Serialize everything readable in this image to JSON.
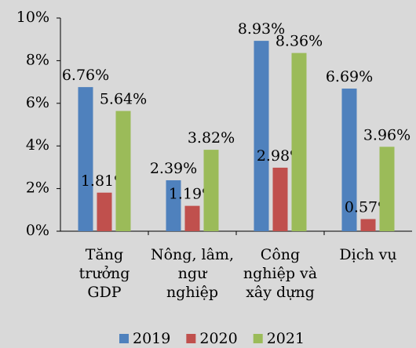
{
  "chart_data": {
    "type": "bar",
    "categories": [
      "Tăng\ntrưởng\nGDP",
      "Nông, lâm,\nngư\nnghiệp",
      "Công\nnghiệp và\nxây dựng",
      "Dịch vụ"
    ],
    "series": [
      {
        "name": "2019",
        "color": "#4f81bd",
        "values": [
          6.76,
          2.39,
          8.93,
          6.69
        ],
        "value_labels": [
          "6.76%",
          "2.39%",
          "8.93%",
          "6.69%"
        ]
      },
      {
        "name": "2020",
        "color": "#c0504d",
        "values": [
          1.81,
          1.19,
          2.98,
          0.57
        ],
        "value_labels": [
          "1.81%",
          "1.19%",
          "2.98%",
          "0.57%"
        ]
      },
      {
        "name": "2021",
        "color": "#9bbb59",
        "values": [
          5.64,
          3.82,
          8.36,
          3.96
        ],
        "value_labels": [
          "5.64%",
          "3.82%",
          "8.36%",
          "3.96%"
        ]
      }
    ],
    "ylim": [
      0,
      10
    ],
    "yticks": [
      {
        "value": 0,
        "label": "0%"
      },
      {
        "value": 2,
        "label": "2%"
      },
      {
        "value": 4,
        "label": "4%"
      },
      {
        "value": 6,
        "label": "6%"
      },
      {
        "value": 8,
        "label": "8%"
      },
      {
        "value": 10,
        "label": "10%"
      }
    ],
    "grid": false,
    "legend": "bottom"
  }
}
